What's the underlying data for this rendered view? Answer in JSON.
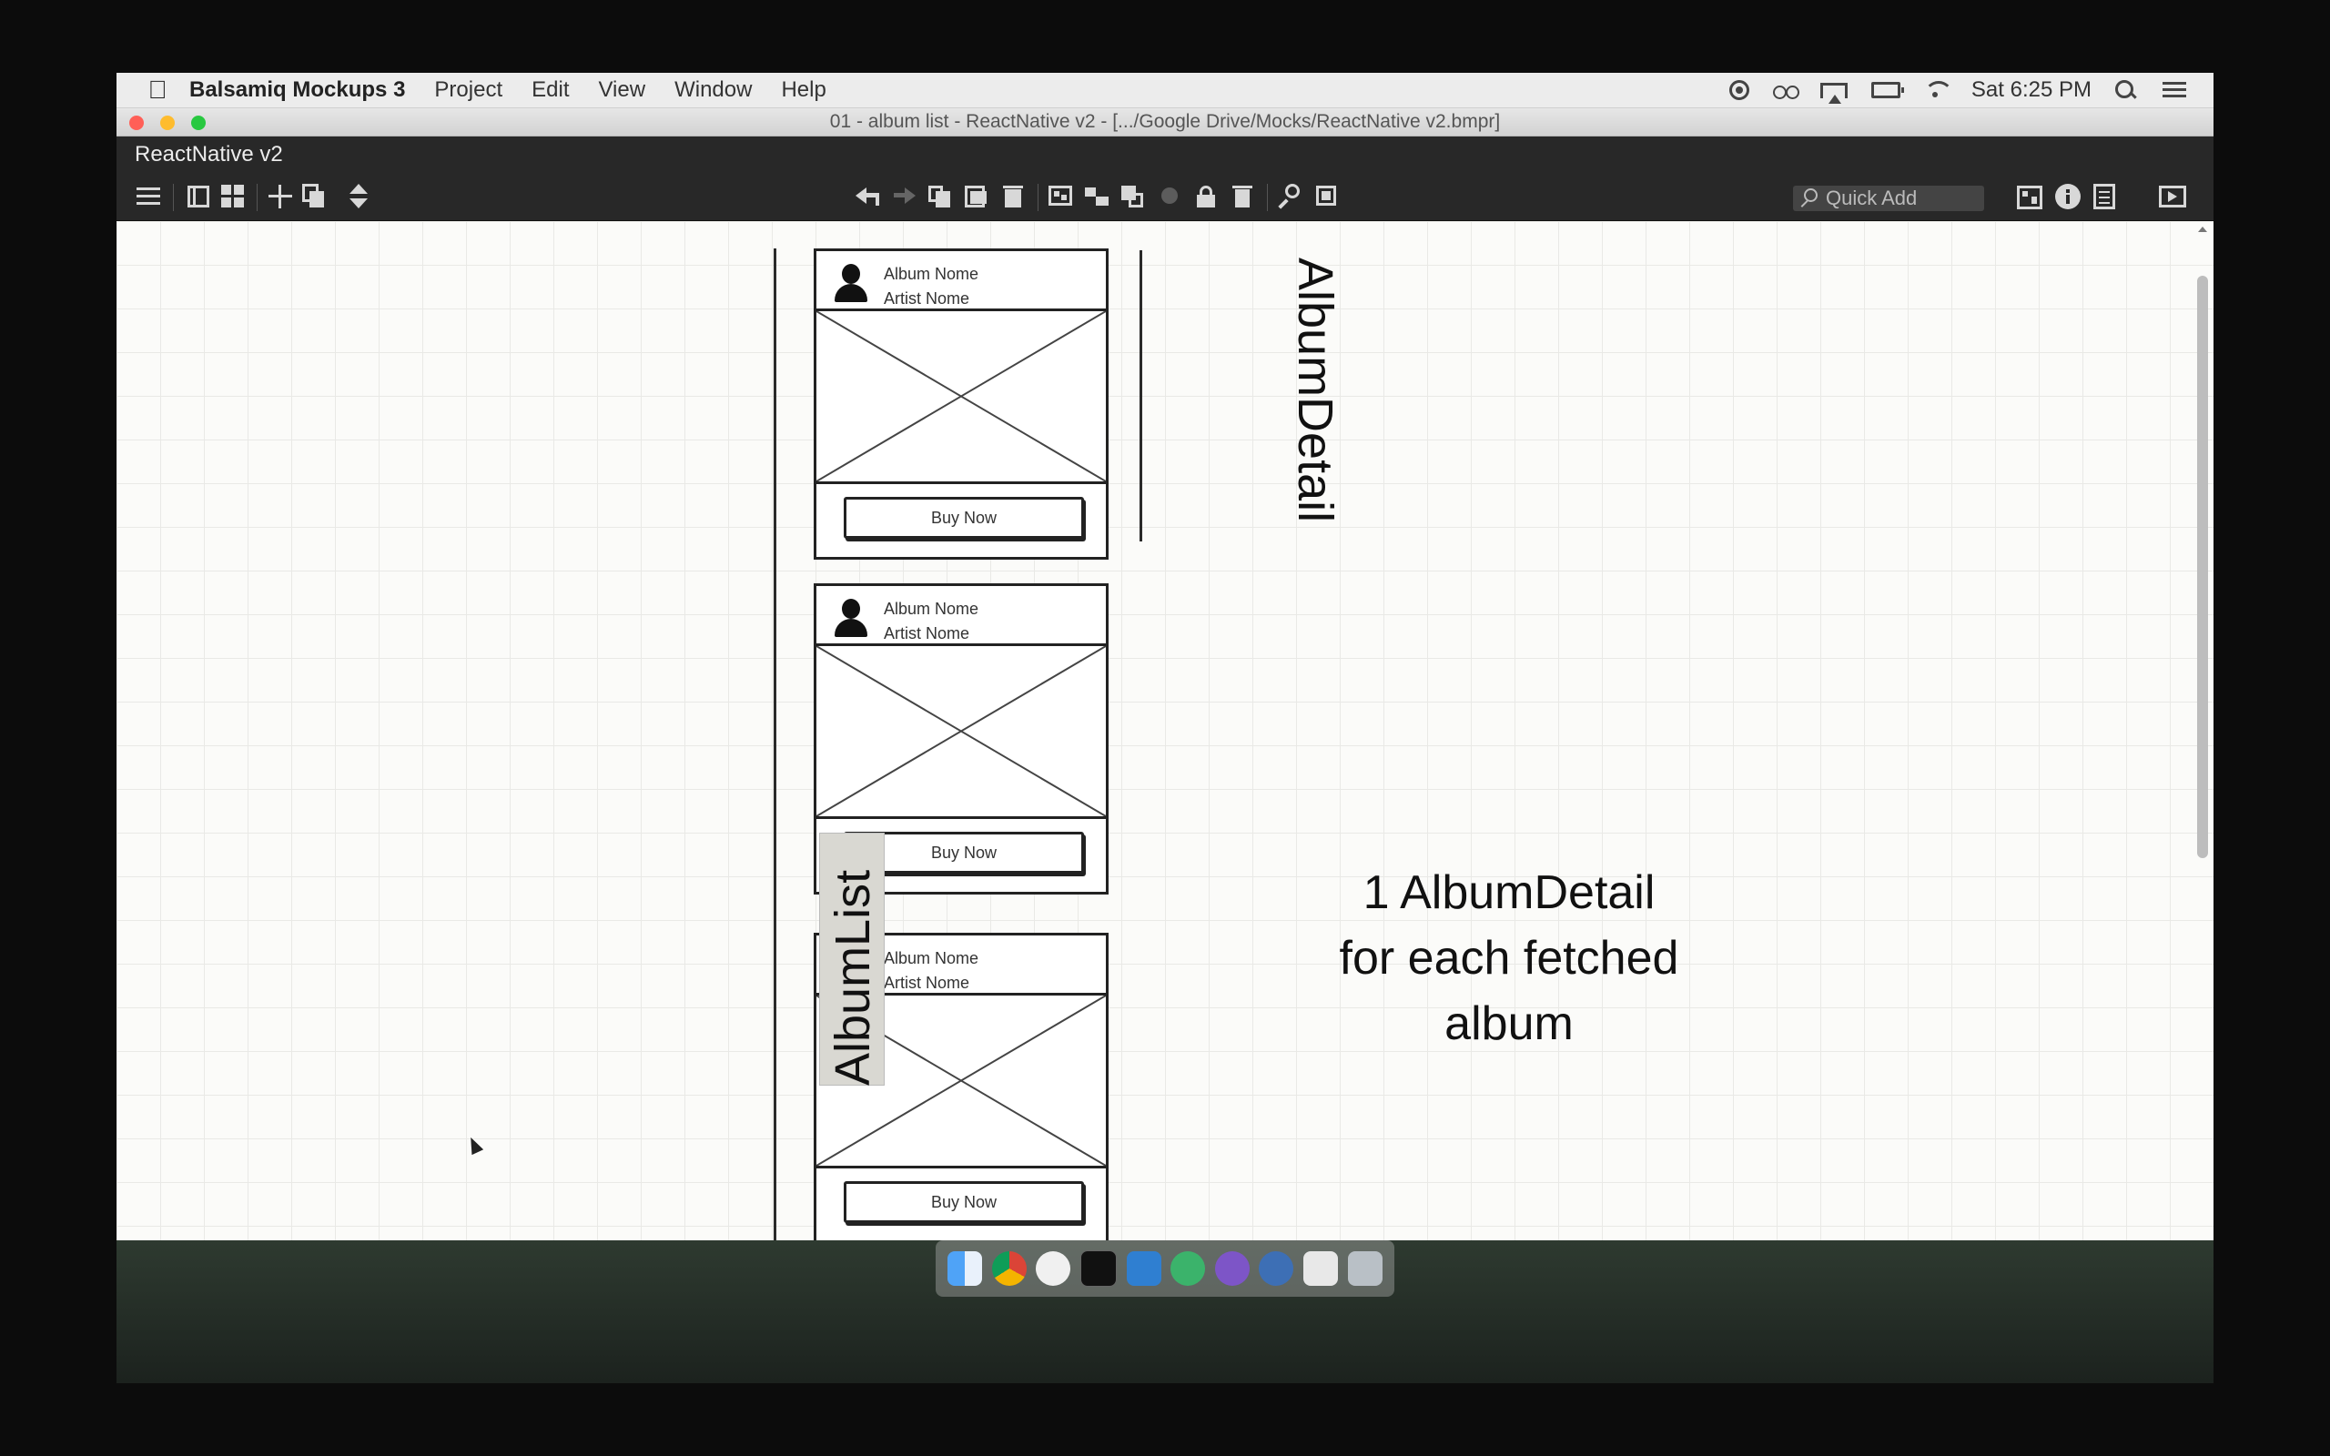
{
  "menubar": {
    "app_name": "Balsamiq Mockups 3",
    "menus": [
      "Project",
      "Edit",
      "View",
      "Window",
      "Help"
    ],
    "clock": "Sat 6:25 PM"
  },
  "window": {
    "title": "01 - album list - ReactNative v2 - [.../Google Drive/Mocks/ReactNative v2.bmpr]",
    "project_name": "ReactNative v2"
  },
  "toolbar": {
    "quick_add_placeholder": "Quick Add"
  },
  "canvas": {
    "cards": [
      {
        "album_name": "Album Nome",
        "artist_name": "Artist Nome",
        "button_label": "Buy Now"
      },
      {
        "album_name": "Album Nome",
        "artist_name": "Artist Nome",
        "button_label": "Buy Now"
      },
      {
        "album_name": "Album Nome",
        "artist_name": "Artist Nome",
        "button_label": "Buy Now"
      }
    ],
    "album_list_label": "AlbumList",
    "album_detail_label": "AlbumDetail",
    "note_lines": [
      "1 AlbumDetail",
      "for each fetched",
      "album"
    ]
  },
  "colors": {
    "traffic_close": "#ff5f57",
    "traffic_minimize": "#febc2e",
    "traffic_zoom": "#28c840",
    "app_header_bg": "#282828",
    "canvas_bg": "#fbfbf9"
  }
}
